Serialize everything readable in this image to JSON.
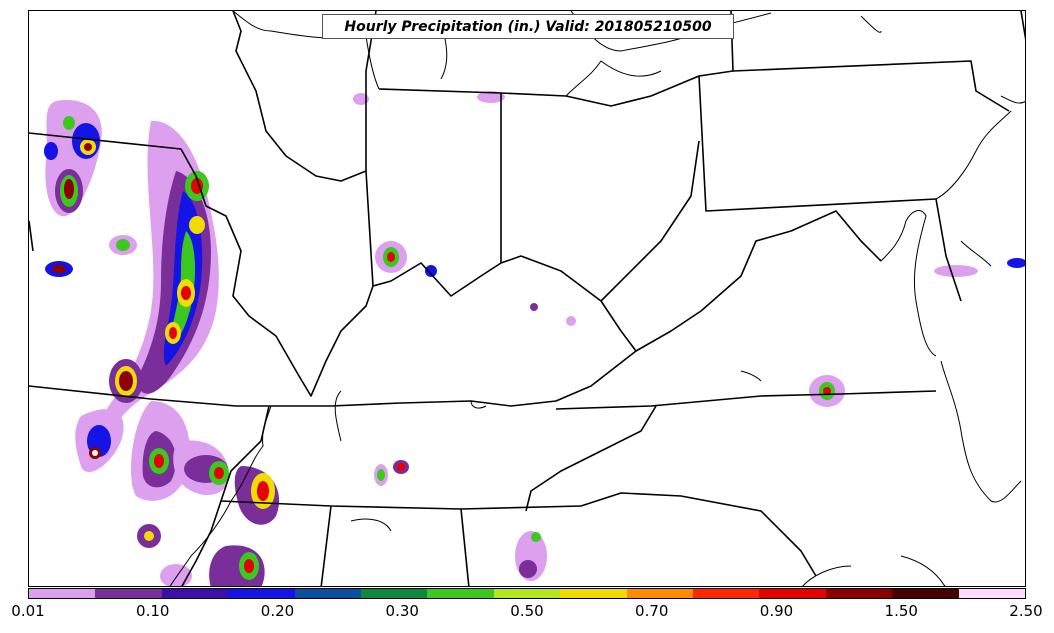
{
  "title": "Hourly Precipitation (in.) Valid: 201805210500",
  "colorbar": {
    "colors": [
      "#dda0ee",
      "#7a2e9a",
      "#3d0fa8",
      "#1414e6",
      "#0a4fa0",
      "#0a8a3c",
      "#3cc81e",
      "#b4e61e",
      "#f0dc00",
      "#ff8c00",
      "#ff2800",
      "#e60000",
      "#8c0000",
      "#460000",
      "#ffdcff"
    ],
    "labels": [
      "0.01",
      "0.10",
      "0.20",
      "0.30",
      "0.50",
      "0.70",
      "0.90",
      "1.50",
      "2.50"
    ]
  }
}
